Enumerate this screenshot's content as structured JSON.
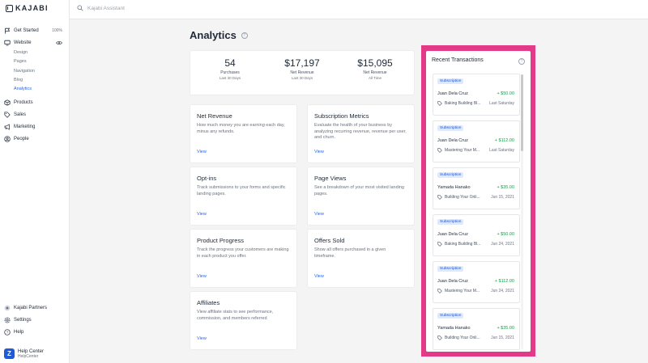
{
  "brand": {
    "name": "KAJABI"
  },
  "search": {
    "placeholder": "Kajabi Assistant"
  },
  "sidebar": {
    "get_started": {
      "label": "Get Started",
      "progress": "100%"
    },
    "website": {
      "label": "Website"
    },
    "website_sub": [
      "Design",
      "Pages",
      "Navigation",
      "Blog",
      "Analytics"
    ],
    "items": [
      {
        "label": "Products",
        "icon": "products-icon"
      },
      {
        "label": "Sales",
        "icon": "tag-icon"
      },
      {
        "label": "Marketing",
        "icon": "megaphone-icon"
      },
      {
        "label": "People",
        "icon": "person-icon"
      }
    ],
    "bottom": [
      {
        "label": "Kajabi Partners",
        "icon": "partners-icon"
      },
      {
        "label": "Settings",
        "icon": "gear-icon"
      },
      {
        "label": "Help",
        "icon": "help-icon"
      }
    ],
    "help_center": {
      "title": "Help Center",
      "subtitle": "HelpCenter"
    }
  },
  "main": {
    "title": "Analytics",
    "stats": [
      {
        "value": "54",
        "label": "Purchases",
        "period": "Last 30 Days"
      },
      {
        "value": "$17,197",
        "label": "Net Revenue",
        "period": "Last 30 Days"
      },
      {
        "value": "$15,095",
        "label": "Net Revenue",
        "period": "All Time"
      }
    ],
    "cards": [
      {
        "title": "Net Revenue",
        "desc": "How much money you are earning each day, minus any refunds.",
        "link": "View"
      },
      {
        "title": "Subscription Metrics",
        "desc": "Evaluate the health of your business by analyzing recurring revenue, revenue per user, and churn.",
        "link": "View"
      },
      {
        "title": "Opt-ins",
        "desc": "Track submissions to your forms and specific landing pages.",
        "link": "View"
      },
      {
        "title": "Page Views",
        "desc": "See a breakdown of your most visited landing pages.",
        "link": "View"
      },
      {
        "title": "Product Progress",
        "desc": "Track the progress your customers are making in each product you offer.",
        "link": "View"
      },
      {
        "title": "Offers Sold",
        "desc": "Show all offers purchased in a given timeframe.",
        "link": "View"
      },
      {
        "title": "Affiliates",
        "desc": "View affiliate stats to see performance, commission, and members referred",
        "link": "View"
      }
    ]
  },
  "transactions": {
    "title": "Recent Transactions",
    "items": [
      {
        "badge": "Subscription",
        "name": "Juan Dela Cruz",
        "amount": "+ $50.00",
        "product": "Baking Building Bl...",
        "date": "Last Saturday"
      },
      {
        "badge": "Subscription",
        "name": "Juan Dela Cruz",
        "amount": "+ $112.00",
        "product": "Mastering Your M...",
        "date": "Last Saturday"
      },
      {
        "badge": "Subscription",
        "name": "Yamada Hanako",
        "amount": "+ $35.00",
        "product": "Building Your Onli...",
        "date": "Jun 15, 2021"
      },
      {
        "badge": "Subscription",
        "name": "Juan Dela Cruz",
        "amount": "+ $50.00",
        "product": "Baking Building Bl...",
        "date": "Jun 24, 2021"
      },
      {
        "badge": "Subscription",
        "name": "Juan Dela Cruz",
        "amount": "+ $112.00",
        "product": "Mastering Your M...",
        "date": "Jun 24, 2021"
      },
      {
        "badge": "Subscription",
        "name": "Yamada Hanako",
        "amount": "+ $35.00",
        "product": "Building Your Onli...",
        "date": "Jun 15, 2021"
      }
    ]
  },
  "colors": {
    "accent": "#2563eb",
    "highlight": "#e23a86",
    "positive": "#16a34a"
  }
}
